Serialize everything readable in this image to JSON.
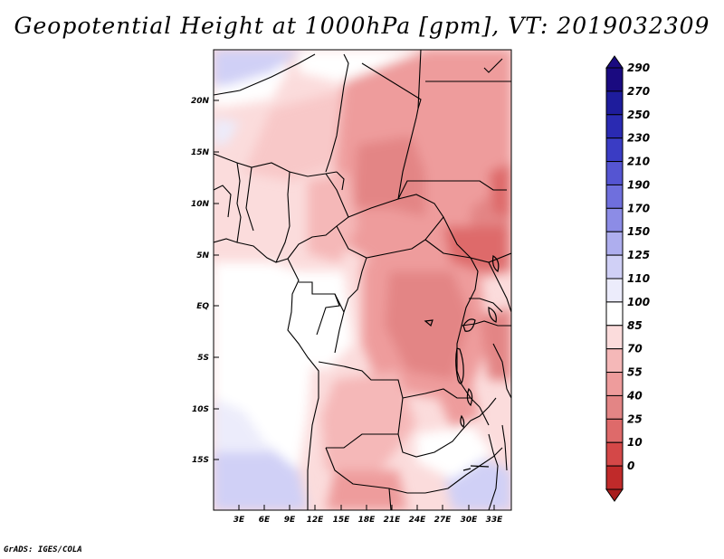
{
  "title": "Geopotential Height at 1000hPa [gpm], VT: 2019032309",
  "footer": "GrADS: IGES/COLA",
  "map": {
    "lat_labels": [
      "20N",
      "15N",
      "10N",
      "5N",
      "EQ",
      "5S",
      "10S",
      "15S"
    ],
    "lon_labels": [
      "3E",
      "6E",
      "9E",
      "12E",
      "15E",
      "18E",
      "21E",
      "24E",
      "27E",
      "30E",
      "33E"
    ],
    "region": "Central Africa"
  },
  "colorbar": {
    "levels": [
      {
        "label": "290",
        "color": "#1a0a80"
      },
      {
        "label": "270",
        "color": "#1e1c9c"
      },
      {
        "label": "250",
        "color": "#2a2ab2"
      },
      {
        "label": "230",
        "color": "#3a3cc4"
      },
      {
        "label": "210",
        "color": "#5555d2"
      },
      {
        "label": "190",
        "color": "#6f6fdd"
      },
      {
        "label": "170",
        "color": "#8c8ce6"
      },
      {
        "label": "150",
        "color": "#aeaeee"
      },
      {
        "label": "125",
        "color": "#d0d0f6"
      },
      {
        "label": "110",
        "color": "#ececfb"
      },
      {
        "label": "100",
        "color": "#ffffff"
      },
      {
        "label": "85",
        "color": "#fbdcdc"
      },
      {
        "label": "70",
        "color": "#f5b8b8"
      },
      {
        "label": "55",
        "color": "#ee9c9c"
      },
      {
        "label": "40",
        "color": "#e38585"
      },
      {
        "label": "25",
        "color": "#de6a6a"
      },
      {
        "label": "10",
        "color": "#d44848"
      },
      {
        "label": "0",
        "color": "#c02a2a"
      }
    ],
    "bottom_color": "#a81e1e"
  }
}
